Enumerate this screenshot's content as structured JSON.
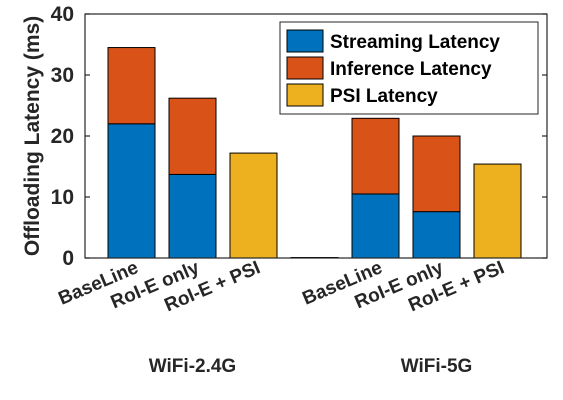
{
  "chart_data": {
    "type": "bar",
    "stacked": true,
    "ylabel": "Offloading Latency (ms)",
    "ylim": [
      0,
      40
    ],
    "yticks": [
      "0",
      "10",
      "20",
      "30",
      "40"
    ],
    "groups": [
      {
        "name": "WiFi-2.4G",
        "categories": [
          "BaseLine",
          "RoI-E only",
          "RoI-E + PSI"
        ]
      },
      {
        "name": "WiFi-5G",
        "categories": [
          "BaseLine",
          "RoI-E only",
          "RoI-E + PSI"
        ]
      }
    ],
    "categories": [
      "BaseLine",
      "RoI-E only",
      "RoI-E + PSI",
      "BaseLine",
      "RoI-E only",
      "RoI-E + PSI"
    ],
    "series": [
      {
        "name": "Streaming Latency",
        "color": "#0072BD",
        "values": [
          22,
          13.7,
          0,
          10.5,
          7.6,
          0
        ]
      },
      {
        "name": "Inference Latency",
        "color": "#D95319",
        "values": [
          12.5,
          12.5,
          0,
          12.4,
          12.4,
          0
        ]
      },
      {
        "name": "PSI Latency",
        "color": "#EDB120",
        "values": [
          0,
          0,
          17.2,
          0,
          0,
          15.4
        ]
      }
    ],
    "grid": false,
    "legend_position": "top-right"
  }
}
